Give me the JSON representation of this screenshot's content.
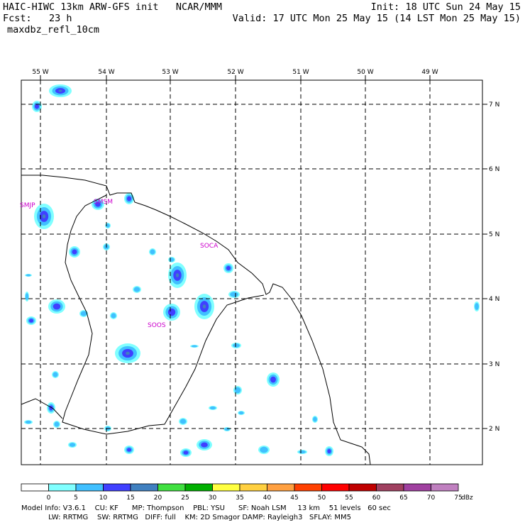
{
  "header": {
    "title": "HAIC-HIWC 13km ARW-GFS init   NCAR/MMM",
    "fcst_label": "Fcst:",
    "fcst_value": "23 h",
    "init": "Init: 18 UTC Sun 24 May 15",
    "valid": "Valid: 17 UTC Mon 25 May 15 (14 LST Mon 25 May 15)",
    "field": "maxdbz_refl_10cm"
  },
  "map": {
    "lon_labels": [
      "55 W",
      "54 W",
      "53 W",
      "52 W",
      "51 W",
      "50 W",
      "49 W"
    ],
    "lat_labels": [
      "7 N",
      "6 N",
      "5 N",
      "4 N",
      "3 N",
      "2 N"
    ],
    "stations": [
      "SMJP",
      "SMSM",
      "SOCA",
      "SOOS"
    ]
  },
  "colorbar": {
    "ticks": [
      "0",
      "5",
      "10",
      "15",
      "20",
      "25",
      "30",
      "35",
      "40",
      "45",
      "50",
      "55",
      "60",
      "65",
      "70",
      "75"
    ],
    "unit": "dBz",
    "colors": [
      "#ffffff",
      "#80ffff",
      "#40c0ff",
      "#4040ff",
      "#4080c0",
      "#40e040",
      "#00b000",
      "#ffff40",
      "#ffd040",
      "#ffa040",
      "#ff4000",
      "#ff0000",
      "#c00000",
      "#a04060",
      "#a040a0",
      "#c080c0"
    ]
  },
  "footer": {
    "line1": "Model Info: V3.6.1    CU: KF      MP: Thompson    PBL: YSU      SF: Noah LSM     13 km    51 levels   60 sec",
    "line2": "            LW: RRTMG    SW: RRTMG   DIFF: full    KM: 2D Smagor DAMP: Rayleigh3   SFLAY: MM5"
  }
}
